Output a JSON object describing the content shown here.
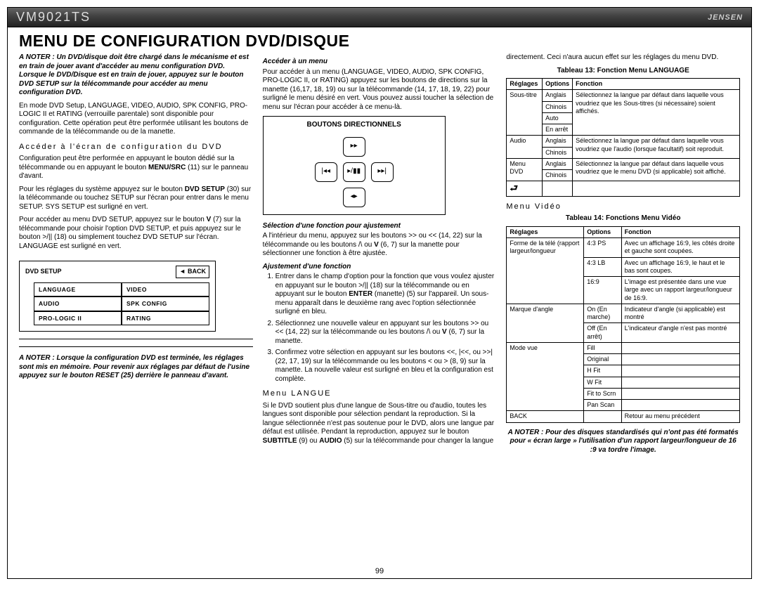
{
  "header": {
    "model": "VM9021TS",
    "brand": "JENSEN"
  },
  "title": "MENU DE CONFIGURATION DVD/DISQUE",
  "pagenum": "99",
  "col1": {
    "note1": "A NOTER : Un DVD/disque doit être chargé dans le mécanisme et est en train de jouer avant d'accéder au menu configuration DVD. Lorsque le DVD/Disque est en train de jouer, appuyez sur le bouton DVD SETUP sur la télécommande pour accéder au menu configuration DVD.",
    "p1": "En mode DVD Setup, LANGUAGE, VIDEO, AUDIO, SPK CONFIG, PRO-LOGIC II et RATING (verrouille parentale) sont disponible pour configuration. Cette opération peut être performée utilisant les boutons de commande de la télécommande ou de la manette.",
    "h1": "Accéder à l'écran de configuration du DVD",
    "p2_a": "Configuration peut être performée en appuyant le bouton dédié sur la télécommande ou en appuyant le bouton ",
    "p2_b": "MENU/SRC",
    "p2_c": " (11) sur le panneau d'avant.",
    "p3_a": "Pour les réglages du système appuyez sur le bouton ",
    "p3_b": "DVD SETUP",
    "p3_c": " (30) sur la télécommande ou touchez SETUP sur l'écran pour entrer dans le menu SETUP. SYS SETUP est surligné en vert.",
    "p4_a": "Pour accéder au menu DVD SETUP, appuyez sur le bouton ",
    "p4_b": "V",
    "p4_c": " (7) sur la télécommande pour choisir l'option DVD SETUP, et puis appuyez sur le bouton >/|| (18) ou simplement touchez DVD SETUP sur l'écran. LANGUAGE est surligné en vert.",
    "setup_label": "DVD SETUP",
    "back_label": "BACK",
    "cells": [
      "LANGUAGE",
      "VIDEO",
      "AUDIO",
      "SPK CONFIG",
      "PRO-LOGIC II",
      "RATING"
    ],
    "note2": "A NOTER : Lorsque la configuration DVD est terminée, les réglages sont mis en mémoire. Pour revenir aux réglages par défaut de l'usine appuyez sur le bouton RESET (25) derrière le panneau d'avant."
  },
  "col2": {
    "h1": "Accéder à un menu",
    "p1": "Pour accéder à un menu (LANGUAGE, VIDEO, AUDIO, SPK CONFIG, PRO-LOGIC II, or RATING) appuyez sur les boutons de directions sur la manette (16,17, 18, 19) ou sur la télécommande (14, 17, 18, 19, 22) pour surligné le menu désiré en vert. Vous pouvez aussi toucher la sélection de menu sur l'écran pour accéder à ce menu-là.",
    "dir_cap": "BOUTONS DIRECTIONNELS",
    "h2": "Sélection d'une fonction pour ajustement",
    "p2_a": "A l'intérieur du menu, appuyez sur les boutons >> ou << (14, 22) sur la télécommande ou les boutons /\\ ou ",
    "p2_b": "V",
    "p2_c": " (6, 7) sur la manette pour sélectionner une fonction à être ajustée.",
    "h3": "Ajustement d'une fonction",
    "ol1_a": "Entrer dans le champ d'option pour la fonction que vous voulez ajuster en appuyant sur le bouton >/|| (18) sur la télécommande ou en appuyant sur le bouton ",
    "ol1_b": "ENTER",
    "ol1_c": " (manette) (5) sur l'appareil. Un sous-menu apparaît dans le deuxième rang avec l'option sélectionnée surligné en bleu.",
    "ol2_a": "Sélectionnez une nouvelle valeur en appuyant sur les boutons >> ou << (14, 22) sur la télécommande ou les boutons /\\ ou ",
    "ol2_b": "V",
    "ol2_c": " (6, 7) sur la manette.",
    "ol3": "Confirmez votre sélection en appuyant sur les boutons <<, |<<, ou >>| (22, 17, 19) sur la télécommande ou les boutons < ou > (8, 9) sur la manette. La nouvelle valeur est surligné en bleu et la configuration est complète.",
    "h4": "Menu LANGUE",
    "p3_a": "Si le DVD soutient plus d'une langue de Sous-titre ou d'audio, toutes les langues sont disponible pour sélection pendant la reproduction. Si la langue sélectionnée n'est pas soutenue pour le DVD, alors une langue par défaut est utilisée. Pendant la reproduction, appuyez sur le bouton ",
    "p3_b": "SUBTITLE",
    "p3_c": " (9) ou ",
    "p3_d": "AUDIO",
    "p3_e": " (5) sur la télécommande pour changer la langue"
  },
  "col3": {
    "p0": "directement. Ceci n'aura aucun effet sur les réglages du menu DVD.",
    "cap1": "Tableau 13: Fonction Menu LANGUAGE",
    "th": [
      "Réglages",
      "Options",
      "Fonction"
    ],
    "t1": [
      {
        "r": "Sous-titre",
        "o": "Anglais",
        "f": "Sélectionnez la langue par défaut dans laquelle vous voudriez que les Sous-titres (si nécessaire) soient affichés.",
        "rs_r": 4,
        "rs_f": 4
      },
      {
        "o": "Chinois"
      },
      {
        "o": "Auto"
      },
      {
        "o": "En arrêt"
      },
      {
        "r": "Audio",
        "o": "Anglais",
        "f": "Sélectionnez la langue par défaut dans laquelle vous voudriez que l'audio (lorsque facultatif) soit reproduit.",
        "rs_r": 2,
        "rs_f": 2
      },
      {
        "o": "Chinois"
      },
      {
        "r": "Menu DVD",
        "o": "Anglais",
        "f": "Sélectionnez la langue par défaut dans laquelle vous voudriez que le menu DVD (si applicable) soit affiché.",
        "rs_r": 2,
        "rs_f": 2
      },
      {
        "o": "Chinois"
      },
      {
        "r": "↵",
        "o": "",
        "f": ""
      }
    ],
    "h1": "Menu Vidéo",
    "cap2": "Tableau 14: Fonctions Menu Vidéo",
    "t2": [
      {
        "r": "Forme de la télé (rapport largeur/longueur",
        "o": "4:3 PS",
        "f": "Avec un affichage 16:9, les côtés droite et gauche sont coupées.",
        "rs_r": 3
      },
      {
        "o": "4:3 LB",
        "f": "Avec un affichage 16:9, le haut et le bas sont coupes."
      },
      {
        "o": "16:9",
        "f": "L'image est présentée dans une vue large avec un rapport largeur/longueur de 16:9."
      },
      {
        "r": "Marque d'angle",
        "o": "On (En marche)",
        "f": "Indicateur d'angle (si applicable) est montré",
        "rs_r": 2
      },
      {
        "o": "Off (En arrêt)",
        "f": "L'indicateur d'angle n'est pas montré"
      },
      {
        "r": "Mode vue",
        "o": "Fill",
        "f": "",
        "rs_r": 6
      },
      {
        "o": "Original",
        "f": ""
      },
      {
        "o": "H Fit",
        "f": ""
      },
      {
        "o": "W Fit",
        "f": ""
      },
      {
        "o": "Fit to Scrn",
        "f": ""
      },
      {
        "o": "Pan Scan",
        "f": ""
      },
      {
        "r": "BACK",
        "o": "",
        "f": "Retour au menu précédent"
      }
    ],
    "note": "A NOTER : Pour des disques standardisés qui n'ont pas été formatés pour « écran large » l'utilisation d'un rapport largeur/longueur de 16 :9 va tordre l'image."
  }
}
